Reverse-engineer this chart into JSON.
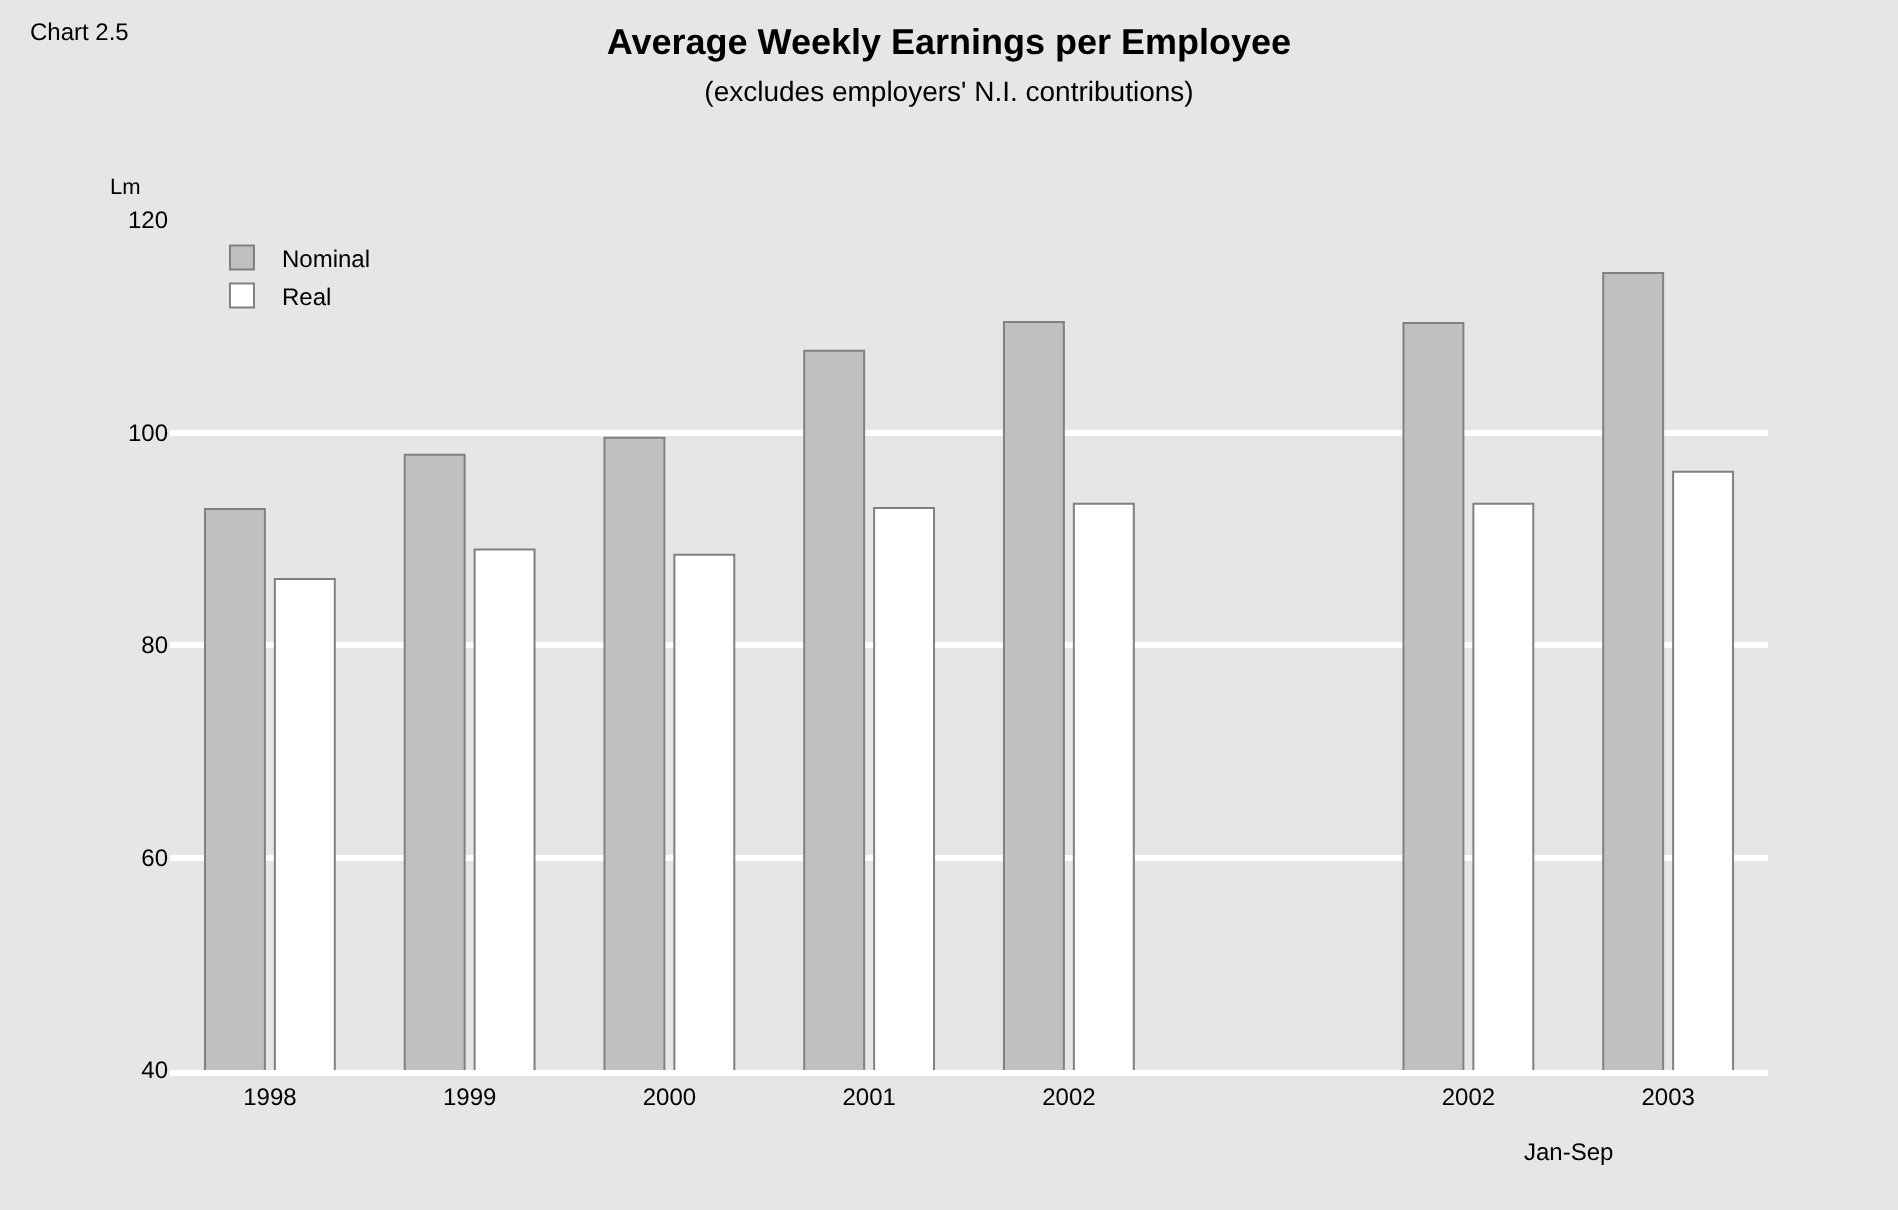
{
  "chart_data": {
    "type": "bar",
    "title": "Average Weekly Earnings per Employee",
    "subtitle": "(excludes employers' N.I. contributions)",
    "ylabel": "Lm",
    "annotations": [
      "Chart 2.5",
      {
        "text": "Jan-Sep",
        "x": "2003"
      }
    ],
    "categories": [
      "1998",
      "1999",
      "2000",
      "2001",
      "2002",
      null,
      "2002",
      "2003"
    ],
    "series": [
      {
        "name": "Nominal",
        "color": "#c0c0c0",
        "values": [
          92.8,
          97.9,
          99.5,
          107.7,
          110.4,
          null,
          110.3,
          115.0
        ]
      },
      {
        "name": "Real",
        "color": "#ffffff",
        "values": [
          86.2,
          89.0,
          88.5,
          92.9,
          93.3,
          null,
          93.3,
          96.3
        ]
      }
    ],
    "ylim": [
      40,
      120
    ],
    "yticks": [
      40,
      60,
      80,
      100,
      120
    ],
    "grid": "y",
    "legend": "top left"
  }
}
